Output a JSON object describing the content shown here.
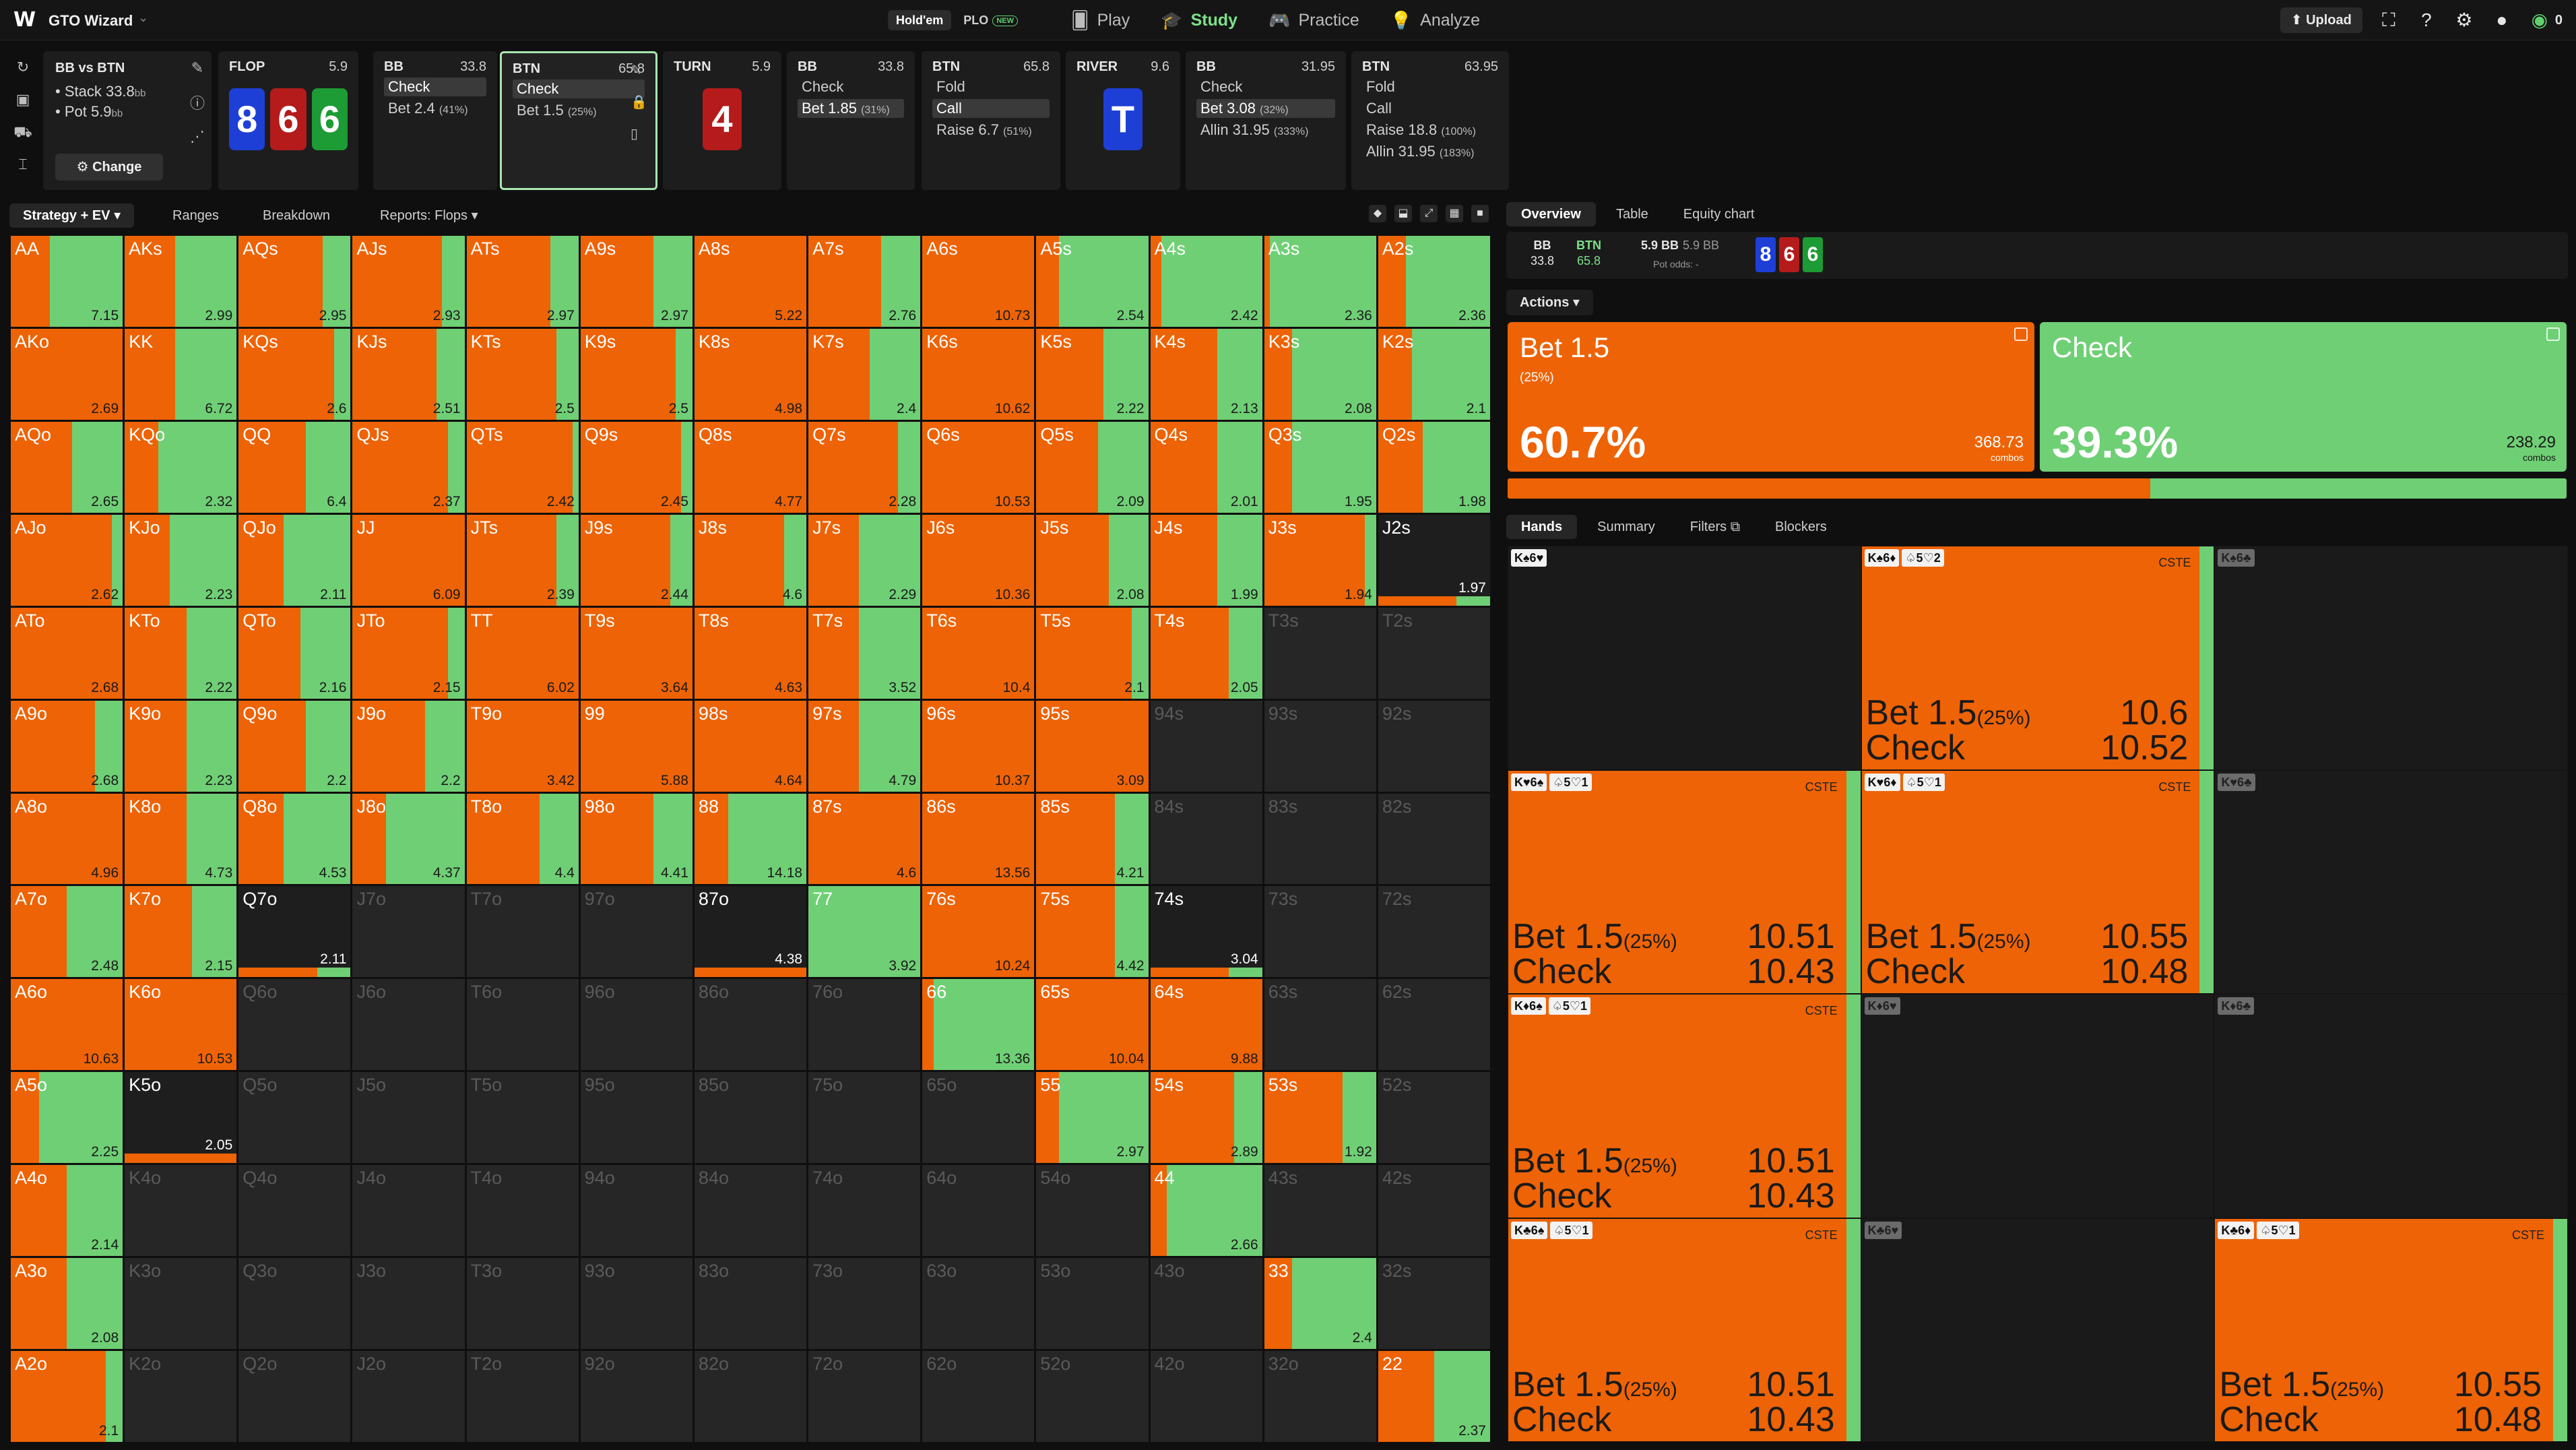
{
  "nav": {
    "brand": "GTO Wizard",
    "game_modes": [
      {
        "label": "Hold'em",
        "active": true
      },
      {
        "label": "PLO",
        "badge": "NEW",
        "active": false
      }
    ],
    "items": [
      {
        "label": "Play",
        "icon": "cards-icon"
      },
      {
        "label": "Study",
        "icon": "graduation-cap-icon",
        "active": true
      },
      {
        "label": "Practice",
        "icon": "gamepad-icon"
      },
      {
        "label": "Analyze",
        "icon": "lightbulb-icon"
      }
    ],
    "upload_label": "Upload",
    "coins": "0"
  },
  "spot": {
    "title": "BB vs BTN",
    "stack": "Stack 33.8",
    "pot": "Pot 5.9",
    "unit": "bb",
    "change_label": "Change"
  },
  "panels": {
    "flop": {
      "street": "FLOP",
      "value": "5.9",
      "cards": [
        {
          "rank": "8",
          "color": "blue"
        },
        {
          "rank": "6",
          "color": "red"
        },
        {
          "rank": "6",
          "color": "green"
        }
      ]
    },
    "bb1": {
      "player": "BB",
      "value": "33.8",
      "actions": [
        {
          "label": "Check",
          "selected": true
        },
        {
          "label": "Bet 2.4",
          "pct": "(41%)"
        }
      ]
    },
    "btn1": {
      "player": "BTN",
      "value": "65.8",
      "actions": [
        {
          "label": "Check",
          "selected": true
        },
        {
          "label": "Bet 1.5",
          "pct": "(25%)"
        }
      ]
    },
    "turn": {
      "street": "TURN",
      "value": "5.9",
      "cards": [
        {
          "rank": "4",
          "color": "red"
        }
      ]
    },
    "bb2": {
      "player": "BB",
      "value": "33.8",
      "actions": [
        {
          "label": "Check"
        },
        {
          "label": "Bet 1.85",
          "pct": "(31%)",
          "selected": true
        }
      ]
    },
    "btn2": {
      "player": "BTN",
      "value": "65.8",
      "actions": [
        {
          "label": "Fold"
        },
        {
          "label": "Call",
          "selected": true
        },
        {
          "label": "Raise 6.7",
          "pct": "(51%)"
        }
      ]
    },
    "river": {
      "street": "RIVER",
      "value": "9.6",
      "cards": [
        {
          "rank": "T",
          "color": "blue"
        }
      ]
    },
    "bb3": {
      "player": "BB",
      "value": "31.95",
      "actions": [
        {
          "label": "Check"
        },
        {
          "label": "Bet 3.08",
          "pct": "(32%)",
          "selected": true
        },
        {
          "label": "Allin 31.95",
          "pct": "(333%)"
        }
      ]
    },
    "btn3": {
      "player": "BTN",
      "value": "63.95",
      "actions": [
        {
          "label": "Fold"
        },
        {
          "label": "Call"
        },
        {
          "label": "Raise 18.8",
          "pct": "(100%)"
        },
        {
          "label": "Allin 31.95",
          "pct": "(183%)"
        }
      ]
    }
  },
  "grid_tabs": {
    "strategy": "Strategy + EV",
    "ranges": "Ranges",
    "breakdown": "Breakdown",
    "reports": "Reports: Flops"
  },
  "colors": {
    "bet": "#ee6305",
    "check": "#6fcf75",
    "empty": "#262626"
  },
  "matrix": [
    [
      [
        "AA",
        0.35,
        "7.15"
      ],
      [
        "AKs",
        0.45,
        "2.99"
      ],
      [
        "AQs",
        0.75,
        "2.95"
      ],
      [
        "AJs",
        0.8,
        "2.93"
      ],
      [
        "ATs",
        0.75,
        "2.97"
      ],
      [
        "A9s",
        0.65,
        "2.97"
      ],
      [
        "A8s",
        1.0,
        "5.22"
      ],
      [
        "A7s",
        0.65,
        "2.76"
      ],
      [
        "A6s",
        1.0,
        "10.73"
      ],
      [
        "A5s",
        0.2,
        "2.54"
      ],
      [
        "A4s",
        0.1,
        "2.42"
      ],
      [
        "A3s",
        0.05,
        "2.36"
      ],
      [
        "A2s",
        0.25,
        "2.36"
      ]
    ],
    [
      [
        "AKo",
        1.0,
        "2.69"
      ],
      [
        "KK",
        0.45,
        "6.72"
      ],
      [
        "KQs",
        0.85,
        "2.6"
      ],
      [
        "KJs",
        0.75,
        "2.51"
      ],
      [
        "KTs",
        0.8,
        "2.5"
      ],
      [
        "K9s",
        0.85,
        "2.5"
      ],
      [
        "K8s",
        1.0,
        "4.98"
      ],
      [
        "K7s",
        0.55,
        "2.4"
      ],
      [
        "K6s",
        1.0,
        "10.62"
      ],
      [
        "K5s",
        0.6,
        "2.22"
      ],
      [
        "K4s",
        0.6,
        "2.13"
      ],
      [
        "K3s",
        0.25,
        "2.08"
      ],
      [
        "K2s",
        0.3,
        "2.1"
      ]
    ],
    [
      [
        "AQo",
        0.55,
        "2.65"
      ],
      [
        "KQo",
        0.3,
        "2.32"
      ],
      [
        "QQ",
        0.6,
        "6.4"
      ],
      [
        "QJs",
        0.85,
        "2.37"
      ],
      [
        "QTs",
        0.95,
        "2.42"
      ],
      [
        "Q9s",
        0.9,
        "2.45"
      ],
      [
        "Q8s",
        1.0,
        "4.77"
      ],
      [
        "Q7s",
        0.8,
        "2.28"
      ],
      [
        "Q6s",
        1.0,
        "10.53"
      ],
      [
        "Q5s",
        0.55,
        "2.09"
      ],
      [
        "Q4s",
        0.6,
        "2.01"
      ],
      [
        "Q3s",
        0.25,
        "1.95"
      ],
      [
        "Q2s",
        0.4,
        "1.98"
      ]
    ],
    [
      [
        "AJo",
        0.9,
        "2.62"
      ],
      [
        "KJo",
        0.4,
        "2.23"
      ],
      [
        "QJo",
        0.4,
        "2.11"
      ],
      [
        "JJ",
        1.0,
        "6.09"
      ],
      [
        "JTs",
        0.8,
        "2.39"
      ],
      [
        "J9s",
        0.8,
        "2.44"
      ],
      [
        "J8s",
        0.8,
        "4.6"
      ],
      [
        "J7s",
        0.45,
        "2.29"
      ],
      [
        "J6s",
        1.0,
        "10.36"
      ],
      [
        "J5s",
        0.65,
        "2.08"
      ],
      [
        "J4s",
        0.6,
        "1.99"
      ],
      [
        "J3s",
        0.9,
        "1.94"
      ],
      [
        "J2s",
        0.7,
        "1.97",
        "thin"
      ]
    ],
    [
      [
        "ATo",
        1.0,
        "2.68"
      ],
      [
        "KTo",
        0.55,
        "2.22"
      ],
      [
        "QTo",
        0.55,
        "2.16"
      ],
      [
        "JTo",
        0.85,
        "2.15"
      ],
      [
        "TT",
        1.0,
        "6.02"
      ],
      [
        "T9s",
        1.0,
        "3.64"
      ],
      [
        "T8s",
        1.0,
        "4.63"
      ],
      [
        "T7s",
        0.45,
        "3.52"
      ],
      [
        "T6s",
        1.0,
        "10.4"
      ],
      [
        "T5s",
        0.85,
        "2.1"
      ],
      [
        "T4s",
        0.7,
        "2.05"
      ],
      [
        "T3s",
        0,
        ""
      ],
      [
        "T2s",
        0,
        ""
      ]
    ],
    [
      [
        "A9o",
        0.75,
        "2.68"
      ],
      [
        "K9o",
        0.55,
        "2.23"
      ],
      [
        "Q9o",
        0.6,
        "2.2"
      ],
      [
        "J9o",
        0.65,
        "2.2"
      ],
      [
        "T9o",
        1.0,
        "3.42"
      ],
      [
        "99",
        1.0,
        "5.88"
      ],
      [
        "98s",
        1.0,
        "4.64"
      ],
      [
        "97s",
        0.45,
        "4.79"
      ],
      [
        "96s",
        1.0,
        "10.37"
      ],
      [
        "95s",
        1.0,
        "3.09"
      ],
      [
        "94s",
        0,
        ""
      ],
      [
        "93s",
        0,
        ""
      ],
      [
        "92s",
        0,
        ""
      ]
    ],
    [
      [
        "A8o",
        1.0,
        "4.96"
      ],
      [
        "K8o",
        0.55,
        "4.73"
      ],
      [
        "Q8o",
        0.4,
        "4.53"
      ],
      [
        "J8o",
        0.3,
        "4.37"
      ],
      [
        "T8o",
        0.65,
        "4.4"
      ],
      [
        "98o",
        0.65,
        "4.41"
      ],
      [
        "88",
        0.3,
        "14.18"
      ],
      [
        "87s",
        1.0,
        "4.6"
      ],
      [
        "86s",
        1.0,
        "13.56"
      ],
      [
        "85s",
        0.7,
        "4.21"
      ],
      [
        "84s",
        0,
        ""
      ],
      [
        "83s",
        0,
        ""
      ],
      [
        "82s",
        0,
        ""
      ]
    ],
    [
      [
        "A7o",
        0.5,
        "2.48"
      ],
      [
        "K7o",
        0.6,
        "2.15"
      ],
      [
        "Q7o",
        0.7,
        "2.11",
        "thin"
      ],
      [
        "J7o",
        0,
        ""
      ],
      [
        "T7o",
        0,
        ""
      ],
      [
        "97o",
        0,
        ""
      ],
      [
        "87o",
        1.0,
        "4.38",
        "thin"
      ],
      [
        "77",
        0.0,
        "3.92"
      ],
      [
        "76s",
        1.0,
        "10.24"
      ],
      [
        "75s",
        0.7,
        "4.42"
      ],
      [
        "74s",
        0.7,
        "3.04",
        "thin"
      ],
      [
        "73s",
        0,
        ""
      ],
      [
        "72s",
        0,
        ""
      ]
    ],
    [
      [
        "A6o",
        1.0,
        "10.63"
      ],
      [
        "K6o",
        1.0,
        "10.53"
      ],
      [
        "Q6o",
        0,
        ""
      ],
      [
        "J6o",
        0,
        ""
      ],
      [
        "T6o",
        0,
        ""
      ],
      [
        "96o",
        0,
        ""
      ],
      [
        "86o",
        0,
        ""
      ],
      [
        "76o",
        0,
        ""
      ],
      [
        "66",
        0.1,
        "13.36"
      ],
      [
        "65s",
        1.0,
        "10.04"
      ],
      [
        "64s",
        1.0,
        "9.88"
      ],
      [
        "63s",
        0,
        ""
      ],
      [
        "62s",
        0,
        ""
      ]
    ],
    [
      [
        "A5o",
        0.25,
        "2.25"
      ],
      [
        "K5o",
        1.0,
        "2.05",
        "thin"
      ],
      [
        "Q5o",
        0,
        ""
      ],
      [
        "J5o",
        0,
        ""
      ],
      [
        "T5o",
        0,
        ""
      ],
      [
        "95o",
        0,
        ""
      ],
      [
        "85o",
        0,
        ""
      ],
      [
        "75o",
        0,
        ""
      ],
      [
        "65o",
        0,
        ""
      ],
      [
        "55",
        0.2,
        "2.97"
      ],
      [
        "54s",
        0.75,
        "2.89"
      ],
      [
        "53s",
        0.7,
        "1.92"
      ],
      [
        "52s",
        0,
        ""
      ]
    ],
    [
      [
        "A4o",
        0.5,
        "2.14"
      ],
      [
        "K4o",
        0,
        ""
      ],
      [
        "Q4o",
        0,
        ""
      ],
      [
        "J4o",
        0,
        ""
      ],
      [
        "T4o",
        0,
        ""
      ],
      [
        "94o",
        0,
        ""
      ],
      [
        "84o",
        0,
        ""
      ],
      [
        "74o",
        0,
        ""
      ],
      [
        "64o",
        0,
        ""
      ],
      [
        "54o",
        0,
        ""
      ],
      [
        "44",
        0.15,
        "2.66"
      ],
      [
        "43s",
        0,
        ""
      ],
      [
        "42s",
        0,
        ""
      ]
    ],
    [
      [
        "A3o",
        0.5,
        "2.08"
      ],
      [
        "K3o",
        0,
        ""
      ],
      [
        "Q3o",
        0,
        ""
      ],
      [
        "J3o",
        0,
        ""
      ],
      [
        "T3o",
        0,
        ""
      ],
      [
        "93o",
        0,
        ""
      ],
      [
        "83o",
        0,
        ""
      ],
      [
        "73o",
        0,
        ""
      ],
      [
        "63o",
        0,
        ""
      ],
      [
        "53o",
        0,
        ""
      ],
      [
        "43o",
        0,
        ""
      ],
      [
        "33",
        0.25,
        "2.4"
      ],
      [
        "32s",
        0,
        ""
      ]
    ],
    [
      [
        "A2o",
        0.85,
        "2.1"
      ],
      [
        "K2o",
        0,
        ""
      ],
      [
        "Q2o",
        0,
        ""
      ],
      [
        "J2o",
        0,
        ""
      ],
      [
        "T2o",
        0,
        ""
      ],
      [
        "92o",
        0,
        ""
      ],
      [
        "82o",
        0,
        ""
      ],
      [
        "72o",
        0,
        ""
      ],
      [
        "62o",
        0,
        ""
      ],
      [
        "52o",
        0,
        ""
      ],
      [
        "42o",
        0,
        ""
      ],
      [
        "32o",
        0,
        ""
      ],
      [
        "22",
        0.5,
        "2.37"
      ]
    ]
  ],
  "right_tabs": {
    "overview": "Overview",
    "table": "Table",
    "equity": "Equity chart"
  },
  "pot_info": {
    "bb_label": "BB",
    "bb_stack": "33.8",
    "btn_label": "BTN",
    "btn_stack": "65.8",
    "pot": "5.9 BB",
    "pot_gray": "5.9 BB",
    "odds": "Pot odds: -",
    "cards": [
      {
        "rank": "8",
        "color": "blue"
      },
      {
        "rank": "6",
        "color": "red"
      },
      {
        "rank": "6",
        "color": "green"
      }
    ]
  },
  "actions_label": "Actions",
  "actions": [
    {
      "name": "Bet 1.5",
      "size": "(25%)",
      "pct": "60.7%",
      "combos": "368.73",
      "combos_label": "combos",
      "frac": 0.607
    },
    {
      "name": "Check",
      "size": "",
      "pct": "39.3%",
      "combos": "238.29",
      "combos_label": "combos",
      "frac": 0.393
    }
  ],
  "hands_tabs": {
    "hands": "Hands",
    "summary": "Summary",
    "filters": "Filters",
    "blockers": "Blockers"
  },
  "hands": [
    {
      "tags": [
        "K♠6♥"
      ],
      "dim": false,
      "bet": 0,
      "chk": 0
    },
    {
      "tags": [
        "K♠6♦",
        "♤5♡2"
      ],
      "bet": 0.96,
      "chk": 0.04,
      "cste": "CSTE",
      "r1": [
        "Bet 1.5",
        "(25%)",
        "10.6"
      ],
      "r2": [
        "Check",
        "10.52"
      ]
    },
    {
      "tags": [
        "K♠6♣"
      ],
      "dim": true,
      "bet": 0,
      "chk": 0
    },
    {
      "tags": [
        "K♥6♠",
        "♤5♡1"
      ],
      "bet": 0.96,
      "chk": 0.04,
      "cste": "CSTE",
      "r1": [
        "Bet 1.5",
        "(25%)",
        "10.51"
      ],
      "r2": [
        "Check",
        "10.43"
      ]
    },
    {
      "tags": [
        "K♥6♦",
        "♤5♡1"
      ],
      "bet": 0.96,
      "chk": 0.04,
      "cste": "CSTE",
      "r1": [
        "Bet 1.5",
        "(25%)",
        "10.55"
      ],
      "r2": [
        "Check",
        "10.48"
      ]
    },
    {
      "tags": [
        "K♥6♣"
      ],
      "dim": true,
      "bet": 0,
      "chk": 0
    },
    {
      "tags": [
        "K♦6♠",
        "♤5♡1"
      ],
      "bet": 0.96,
      "chk": 0.04,
      "cste": "CSTE",
      "r1": [
        "Bet 1.5",
        "(25%)",
        "10.51"
      ],
      "r2": [
        "Check",
        "10.43"
      ]
    },
    {
      "tags": [
        "K♦6♥"
      ],
      "dim": true,
      "bet": 0,
      "chk": 0
    },
    {
      "tags": [
        "K♦6♣"
      ],
      "dim": true,
      "bet": 0,
      "chk": 0
    },
    {
      "tags": [
        "K♣6♠",
        "♤5♡1"
      ],
      "bet": 0.96,
      "chk": 0.04,
      "cste": "CSTE",
      "r1": [
        "Bet 1.5",
        "(25%)",
        "10.51"
      ],
      "r2": [
        "Check",
        "10.43"
      ]
    },
    {
      "tags": [
        "K♣6♥"
      ],
      "dim": true,
      "bet": 0,
      "chk": 0
    },
    {
      "tags": [
        "K♣6♦",
        "♤5♡1"
      ],
      "bet": 0.96,
      "chk": 0.04,
      "cste": "CSTE",
      "r1": [
        "Bet 1.5",
        "(25%)",
        "10.55"
      ],
      "r2": [
        "Check",
        "10.48"
      ]
    }
  ]
}
